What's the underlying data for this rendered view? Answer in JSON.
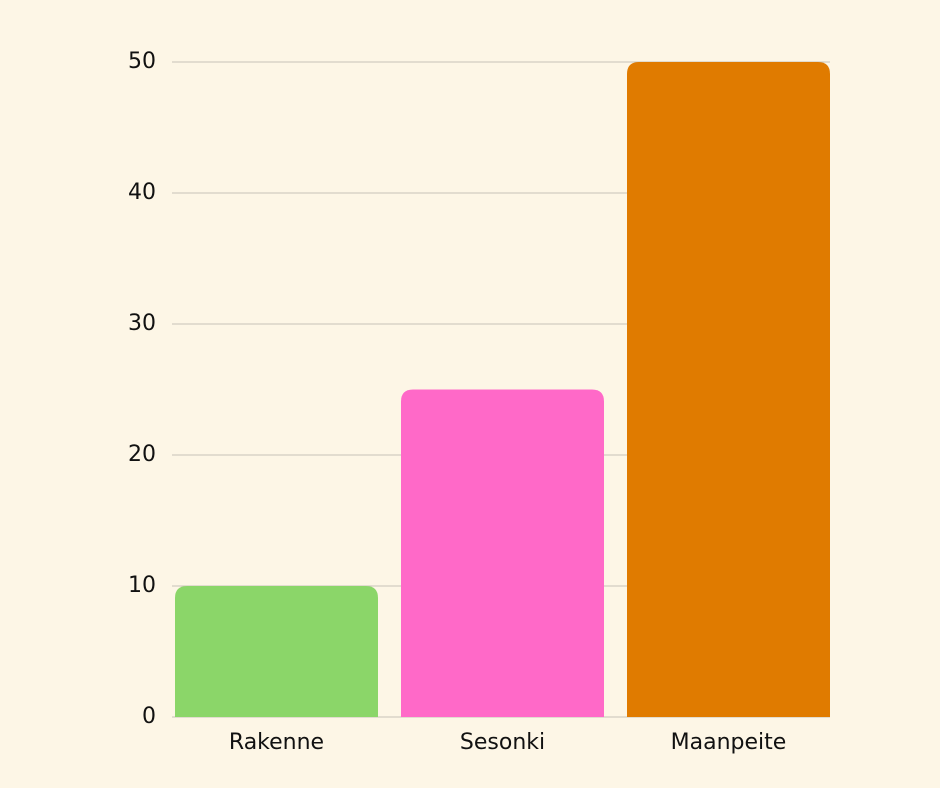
{
  "chart_data": {
    "type": "bar",
    "categories": [
      "Rakenne",
      "Sesonki",
      "Maanpeite"
    ],
    "values": [
      10,
      25,
      50
    ],
    "colors": [
      "#8bd669",
      "#ff69c8",
      "#e07b00"
    ],
    "ylim": [
      0,
      50
    ],
    "yticks": [
      0,
      10,
      20,
      30,
      40,
      50
    ],
    "grid": true
  }
}
